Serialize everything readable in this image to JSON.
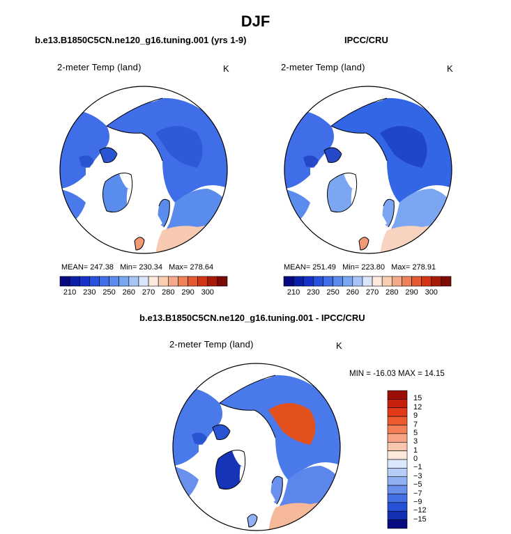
{
  "title": "DJF",
  "panels": {
    "model": {
      "subtitle": "b.e13.B1850C5CN.ne120_g16.tuning.001 (yrs 1-9)",
      "variable": "2-meter Temp (land)",
      "units": "K",
      "mean_label": "MEAN=",
      "mean_value": "247.38",
      "min_label": "Min=",
      "min_value": "230.34",
      "max_label": "Max=",
      "max_value": "278.64"
    },
    "obs": {
      "subtitle": "IPCC/CRU",
      "variable": "2-meter Temp (land)",
      "units": "K",
      "mean_label": "MEAN=",
      "mean_value": "251.49",
      "min_label": "Min=",
      "min_value": "223.80",
      "max_label": "Max=",
      "max_value": "278.91"
    },
    "diff": {
      "subtitle": "b.e13.B1850C5CN.ne120_g16.tuning.001 - IPCC/CRU",
      "variable": "2-meter Temp (land)",
      "units": "K",
      "minmax_text": "MIN = -16.03 MAX =  14.15"
    }
  },
  "colorbar_abs": {
    "tick_labels": [
      "210",
      "230",
      "250",
      "260",
      "270",
      "280",
      "290",
      "300"
    ],
    "colors": [
      "#0a0a80",
      "#0b1fa8",
      "#1632c8",
      "#2851dc",
      "#3f6ee8",
      "#5a8cee",
      "#7ca6f2",
      "#a6c4f7",
      "#d8e6fb",
      "#fde9dc",
      "#f8cdb2",
      "#f3a98a",
      "#ee8257",
      "#e55a2e",
      "#d23414",
      "#a81a0a",
      "#7a0c04"
    ]
  },
  "colorbar_diff": {
    "tick_labels": [
      "15",
      "12",
      "9",
      "7",
      "5",
      "3",
      "1",
      "0",
      "−1",
      "−3",
      "−5",
      "−7",
      "−9",
      "−12",
      "−15"
    ],
    "colors": [
      "#9a0e06",
      "#c8200c",
      "#e03a18",
      "#ec5a2e",
      "#f27f55",
      "#f6a485",
      "#f9c7ae",
      "#fde9dc",
      "#dbe8fb",
      "#b6cdf7",
      "#8fb0f2",
      "#6890ec",
      "#4470e4",
      "#2651d6",
      "#1330b5",
      "#080a80"
    ]
  },
  "chart_data": {
    "type": "heatmap",
    "title": "DJF",
    "projection": "north polar stereographic",
    "variable": "2-meter Temp (land)",
    "units": "K",
    "maps": [
      {
        "name": "b.e13.B1850C5CN.ne120_g16.tuning.001 (yrs 1-9)",
        "mean": 247.38,
        "min": 230.34,
        "max": 278.64,
        "colorbar_levels": [
          210,
          230,
          250,
          260,
          270,
          280,
          290,
          300
        ]
      },
      {
        "name": "IPCC/CRU",
        "mean": 251.49,
        "min": 223.8,
        "max": 278.91,
        "colorbar_levels": [
          210,
          230,
          250,
          260,
          270,
          280,
          290,
          300
        ]
      },
      {
        "name": "b.e13.B1850C5CN.ne120_g16.tuning.001 - IPCC/CRU",
        "min": -16.03,
        "max": 14.15,
        "colorbar_levels": [
          15,
          12,
          9,
          7,
          5,
          3,
          1,
          0,
          -1,
          -3,
          -5,
          -7,
          -9,
          -12,
          -15
        ]
      }
    ]
  }
}
